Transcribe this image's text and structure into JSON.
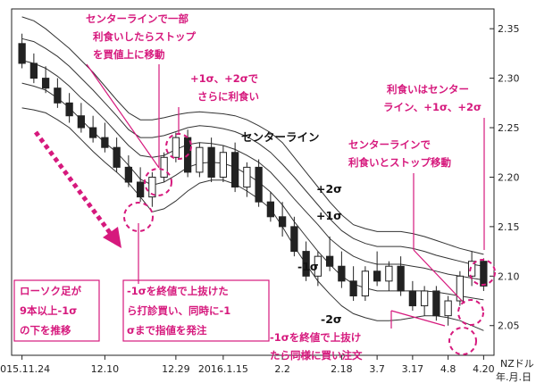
{
  "chart_data": {
    "type": "candlestick",
    "unit_label": "NZドル",
    "date_axis_label": "年.月.日",
    "x_tick_labels": [
      "2015.11.24",
      "12.10",
      "12.29",
      "2016.1.15",
      "2.2",
      "2.18",
      "3.7",
      "3.17",
      "4.8",
      "4.20"
    ],
    "y_ticks": [
      2.05,
      2.1,
      2.15,
      2.2,
      2.25,
      2.3,
      2.35
    ],
    "ylim": [
      2.02,
      2.37
    ],
    "band_labels": [
      "+2σ",
      "+1σ",
      "センターライン",
      "-1σ",
      "-2σ"
    ],
    "center_line": [
      2.318,
      2.315,
      2.31,
      2.302,
      2.292,
      2.28,
      2.27,
      2.258,
      2.245,
      2.232,
      2.222,
      2.22,
      2.222,
      2.228,
      2.233,
      2.235,
      2.234,
      2.232,
      2.228,
      2.222,
      2.215,
      2.205,
      2.192,
      2.178,
      2.165,
      2.152,
      2.138,
      2.128,
      2.12,
      2.115,
      2.112,
      2.112,
      2.112,
      2.11,
      2.108,
      2.105,
      2.102,
      2.1,
      2.098,
      2.096
    ],
    "upper_2sigma": [
      2.362,
      2.358,
      2.35,
      2.34,
      2.33,
      2.318,
      2.306,
      2.292,
      2.278,
      2.265,
      2.258,
      2.258,
      2.26,
      2.263,
      2.265,
      2.266,
      2.265,
      2.264,
      2.262,
      2.258,
      2.252,
      2.245,
      2.235,
      2.22,
      2.205,
      2.19,
      2.175,
      2.162,
      2.152,
      2.148,
      2.145,
      2.145,
      2.145,
      2.143,
      2.14,
      2.136,
      2.132,
      2.128,
      2.125,
      2.122
    ],
    "upper_1sigma": [
      2.34,
      2.337,
      2.33,
      2.322,
      2.312,
      2.3,
      2.288,
      2.275,
      2.262,
      2.248,
      2.24,
      2.24,
      2.242,
      2.246,
      2.25,
      2.252,
      2.251,
      2.249,
      2.246,
      2.241,
      2.234,
      2.225,
      2.213,
      2.2,
      2.186,
      2.172,
      2.158,
      2.146,
      2.138,
      2.133,
      2.13,
      2.13,
      2.13,
      2.128,
      2.125,
      2.121,
      2.118,
      2.115,
      2.112,
      2.11
    ],
    "lower_1sigma": [
      2.295,
      2.292,
      2.288,
      2.28,
      2.27,
      2.258,
      2.246,
      2.235,
      2.225,
      2.212,
      2.198,
      2.192,
      2.195,
      2.202,
      2.21,
      2.214,
      2.215,
      2.214,
      2.21,
      2.203,
      2.195,
      2.185,
      2.172,
      2.155,
      2.14,
      2.125,
      2.112,
      2.1,
      2.092,
      2.088,
      2.085,
      2.085,
      2.085,
      2.085,
      2.085,
      2.084,
      2.082,
      2.08,
      2.078,
      2.076
    ],
    "lower_2sigma": [
      2.27,
      2.268,
      2.265,
      2.258,
      2.25,
      2.238,
      2.226,
      2.215,
      2.205,
      2.194,
      2.18,
      2.165,
      2.168,
      2.176,
      2.186,
      2.194,
      2.197,
      2.197,
      2.193,
      2.186,
      2.178,
      2.168,
      2.15,
      2.13,
      2.112,
      2.095,
      2.082,
      2.07,
      2.062,
      2.058,
      2.055,
      2.055,
      2.056,
      2.058,
      2.06,
      2.06,
      2.058,
      2.055,
      2.05,
      2.045
    ],
    "candles": [
      {
        "o": 2.335,
        "h": 2.345,
        "l": 2.31,
        "c": 2.315
      },
      {
        "o": 2.315,
        "h": 2.325,
        "l": 2.295,
        "c": 2.3
      },
      {
        "o": 2.3,
        "h": 2.312,
        "l": 2.285,
        "c": 2.29
      },
      {
        "o": 2.29,
        "h": 2.3,
        "l": 2.27,
        "c": 2.275
      },
      {
        "o": 2.275,
        "h": 2.285,
        "l": 2.255,
        "c": 2.262
      },
      {
        "o": 2.262,
        "h": 2.275,
        "l": 2.245,
        "c": 2.25
      },
      {
        "o": 2.25,
        "h": 2.262,
        "l": 2.235,
        "c": 2.24
      },
      {
        "o": 2.24,
        "h": 2.255,
        "l": 2.225,
        "c": 2.23
      },
      {
        "o": 2.23,
        "h": 2.24,
        "l": 2.205,
        "c": 2.21
      },
      {
        "o": 2.21,
        "h": 2.222,
        "l": 2.19,
        "c": 2.195
      },
      {
        "o": 2.195,
        "h": 2.21,
        "l": 2.175,
        "c": 2.18
      },
      {
        "o": 2.18,
        "h": 2.205,
        "l": 2.17,
        "c": 2.2
      },
      {
        "o": 2.2,
        "h": 2.225,
        "l": 2.195,
        "c": 2.22
      },
      {
        "o": 2.22,
        "h": 2.245,
        "l": 2.215,
        "c": 2.24
      },
      {
        "o": 2.24,
        "h": 2.248,
        "l": 2.2,
        "c": 2.205
      },
      {
        "o": 2.205,
        "h": 2.235,
        "l": 2.2,
        "c": 2.23
      },
      {
        "o": 2.23,
        "h": 2.24,
        "l": 2.195,
        "c": 2.2
      },
      {
        "o": 2.2,
        "h": 2.232,
        "l": 2.195,
        "c": 2.225
      },
      {
        "o": 2.225,
        "h": 2.235,
        "l": 2.185,
        "c": 2.19
      },
      {
        "o": 2.19,
        "h": 2.215,
        "l": 2.18,
        "c": 2.21
      },
      {
        "o": 2.21,
        "h": 2.218,
        "l": 2.17,
        "c": 2.175
      },
      {
        "o": 2.175,
        "h": 2.185,
        "l": 2.155,
        "c": 2.16
      },
      {
        "o": 2.16,
        "h": 2.175,
        "l": 2.14,
        "c": 2.15
      },
      {
        "o": 2.15,
        "h": 2.16,
        "l": 2.12,
        "c": 2.125
      },
      {
        "o": 2.125,
        "h": 2.135,
        "l": 2.095,
        "c": 2.1
      },
      {
        "o": 2.1,
        "h": 2.125,
        "l": 2.09,
        "c": 2.12
      },
      {
        "o": 2.12,
        "h": 2.14,
        "l": 2.105,
        "c": 2.11
      },
      {
        "o": 2.11,
        "h": 2.125,
        "l": 2.088,
        "c": 2.095
      },
      {
        "o": 2.095,
        "h": 2.11,
        "l": 2.075,
        "c": 2.08
      },
      {
        "o": 2.08,
        "h": 2.11,
        "l": 2.075,
        "c": 2.105
      },
      {
        "o": 2.105,
        "h": 2.125,
        "l": 2.09,
        "c": 2.095
      },
      {
        "o": 2.095,
        "h": 2.115,
        "l": 2.085,
        "c": 2.11
      },
      {
        "o": 2.11,
        "h": 2.12,
        "l": 2.08,
        "c": 2.085
      },
      {
        "o": 2.085,
        "h": 2.095,
        "l": 2.065,
        "c": 2.07
      },
      {
        "o": 2.07,
        "h": 2.09,
        "l": 2.06,
        "c": 2.085
      },
      {
        "o": 2.085,
        "h": 2.09,
        "l": 2.055,
        "c": 2.06
      },
      {
        "o": 2.06,
        "h": 2.08,
        "l": 2.05,
        "c": 2.075
      },
      {
        "o": 2.075,
        "h": 2.105,
        "l": 2.07,
        "c": 2.1
      },
      {
        "o": 2.1,
        "h": 2.125,
        "l": 2.09,
        "c": 2.115
      },
      {
        "o": 2.115,
        "h": 2.118,
        "l": 2.085,
        "c": 2.09
      }
    ],
    "annotations": {
      "center_partial_take": [
        "センターラインで一部",
        "利食いしたらストップ",
        "を買値上に移動"
      ],
      "take_profit_1_2": [
        "+1σ、+2σで",
        "さらに利食い"
      ],
      "take_profit_band": [
        "利食いはセンター",
        "ライン、+1σ、+2σ"
      ],
      "center_take_stop": [
        "センターラインで",
        "利食いとストップ移動"
      ],
      "candles_below": [
        "ローソク足が",
        "9本以上-1σ",
        "の下を推移"
      ],
      "breakout_buy": [
        "-1σを終値で上抜けた",
        "ら打診買い、同時に-1",
        "σまで指値を発注"
      ],
      "breakout_again": [
        "-1σを終値で上抜け",
        "たら同様に買い注文"
      ]
    }
  }
}
